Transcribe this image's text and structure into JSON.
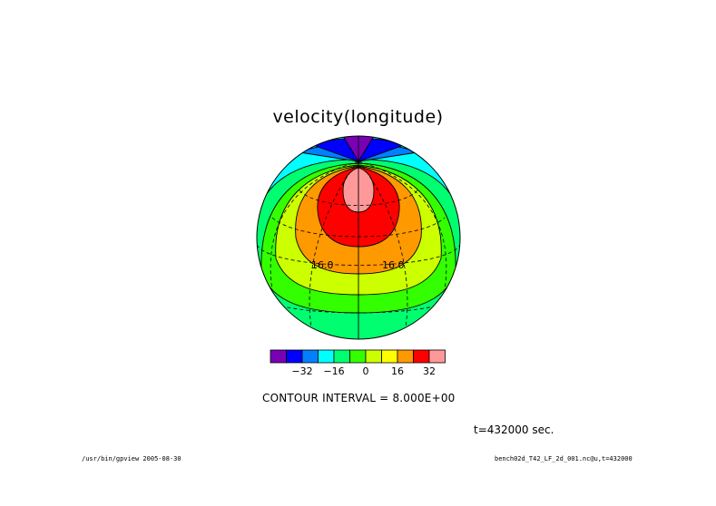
{
  "chart_data": {
    "type": "contour",
    "title": "velocity(longitude)",
    "projection": "orthographic",
    "contour_interval_text": "CONTOUR INTERVAL = 8.000E+00",
    "contour_interval": 8.0,
    "levels": [
      -40,
      -32,
      -24,
      -16,
      -8,
      0,
      8,
      16,
      24,
      32,
      40
    ],
    "colorbar": {
      "colors": [
        "#7a00b4",
        "#0000ff",
        "#0080ff",
        "#00ffff",
        "#00ff70",
        "#33ff00",
        "#ccff00",
        "#ffff00",
        "#ff9900",
        "#ff0000",
        "#ff9999"
      ],
      "tick_labels": [
        "−32",
        "−16",
        "0",
        "16",
        "32"
      ]
    },
    "contour_labels": [
      "16.0",
      "16.0"
    ],
    "time_text": "t=432000 sec.",
    "footer_left": "/usr/bin/gpview  2005-08-30",
    "footer_right": "bench02d_T42_LF_2d_001.nc@u,t=432000"
  }
}
